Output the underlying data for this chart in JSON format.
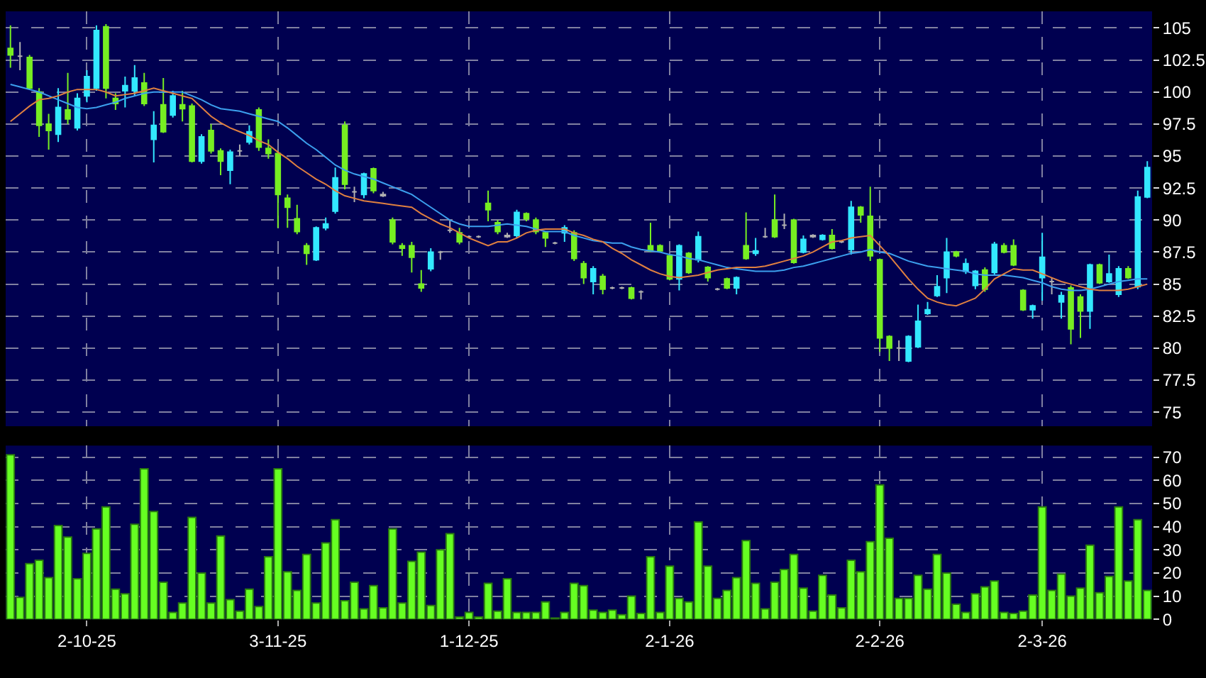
{
  "chart_data": [
    {
      "type": "candlestick",
      "categories": [
        null,
        null,
        null,
        null,
        null,
        null,
        null,
        null,
        null,
        null,
        null,
        null,
        null,
        null,
        null,
        null,
        null,
        null,
        null,
        null,
        null,
        null,
        null,
        null,
        null,
        null,
        null,
        null,
        null,
        null,
        null,
        null,
        null,
        null,
        null,
        null,
        null,
        null,
        null,
        null,
        null,
        null,
        null,
        null,
        null,
        null,
        null,
        null,
        null,
        null,
        null,
        null,
        null,
        null,
        null,
        null,
        null,
        null,
        null,
        null,
        null,
        null,
        null,
        null,
        null,
        null,
        null,
        null,
        null,
        null,
        null,
        null,
        null,
        null,
        null,
        null,
        null,
        null,
        null,
        null,
        null,
        null,
        null,
        null,
        null,
        null,
        null,
        null,
        null,
        null,
        null,
        null,
        null,
        null,
        null,
        null,
        null,
        null,
        null,
        null,
        null,
        null,
        null,
        null,
        null,
        null,
        null,
        null,
        null,
        null,
        null,
        null,
        null,
        null,
        null,
        null,
        null,
        null,
        null,
        null
      ],
      "ohlc": [
        [
          103.4,
          105.2,
          101.9,
          102.9
        ],
        [
          102.8,
          103.9,
          101.7,
          102.8
        ],
        [
          102.7,
          102.9,
          100.2,
          100.3
        ],
        [
          100.0,
          100.3,
          96.5,
          97.4
        ],
        [
          97.5,
          98.3,
          95.5,
          97.0
        ],
        [
          96.7,
          100.3,
          96.1,
          98.8
        ],
        [
          98.6,
          101.5,
          97.5,
          97.9
        ],
        [
          97.2,
          99.9,
          97.0,
          99.5
        ],
        [
          99.7,
          101.7,
          99.2,
          101.2
        ],
        [
          100.3,
          105.2,
          100.1,
          104.8
        ],
        [
          105.1,
          105.3,
          99.5,
          100.3
        ],
        [
          99.5,
          99.9,
          98.6,
          99.1
        ],
        [
          100.1,
          101.2,
          98.8,
          100.5
        ],
        [
          100.1,
          102.1,
          99.7,
          101.1
        ],
        [
          100.7,
          101.5,
          98.9,
          99.1
        ],
        [
          96.3,
          98.5,
          94.5,
          97.4
        ],
        [
          99.0,
          101.1,
          96.8,
          96.9
        ],
        [
          98.2,
          100.1,
          98.0,
          99.7
        ],
        [
          99.0,
          100.1,
          97.7,
          98.7
        ],
        [
          98.9,
          99.1,
          94.5,
          94.6
        ],
        [
          94.6,
          96.7,
          94.4,
          96.5
        ],
        [
          97.0,
          97.5,
          95.2,
          95.4
        ],
        [
          95.4,
          95.6,
          93.5,
          94.6
        ],
        [
          93.9,
          95.5,
          92.8,
          95.3
        ],
        [
          95.4,
          95.9,
          95.0,
          95.4
        ],
        [
          96.1,
          97.4,
          95.9,
          96.9
        ],
        [
          98.6,
          98.8,
          95.4,
          95.7
        ],
        [
          95.6,
          96.3,
          94.8,
          95.2
        ],
        [
          95.2,
          95.4,
          89.4,
          92.0
        ],
        [
          91.7,
          92.0,
          89.4,
          91.0
        ],
        [
          90.1,
          91.2,
          88.9,
          89.1
        ],
        [
          88.0,
          88.2,
          86.5,
          87.4
        ],
        [
          86.9,
          89.5,
          86.8,
          89.4
        ],
        [
          89.4,
          90.2,
          89.2,
          89.7
        ],
        [
          90.7,
          94.1,
          90.5,
          93.3
        ],
        [
          97.4,
          97.7,
          92.4,
          92.8
        ],
        [
          92.2,
          92.6,
          91.4,
          92.2
        ],
        [
          92.0,
          93.7,
          91.7,
          93.6
        ],
        [
          94.0,
          94.1,
          92.1,
          92.3
        ],
        [
          92.0,
          92.2,
          91.8,
          91.9
        ],
        [
          90.0,
          90.2,
          88.1,
          88.3
        ],
        [
          88.0,
          88.2,
          87.2,
          87.8
        ],
        [
          88.0,
          88.3,
          85.9,
          87.1
        ],
        [
          85.0,
          86.1,
          84.4,
          84.7
        ],
        [
          86.2,
          87.8,
          86.0,
          87.5
        ],
        [
          87.5,
          87.6,
          86.9,
          87.5
        ],
        [
          89.2,
          90.0,
          89.0,
          89.2
        ],
        [
          89.0,
          89.4,
          88.1,
          88.3
        ],
        [
          88.7,
          88.8,
          88.6,
          88.7
        ],
        [
          88.7,
          88.8,
          88.6,
          88.7
        ],
        [
          91.3,
          92.3,
          89.9,
          90.8
        ],
        [
          89.8,
          90.0,
          88.9,
          89.1
        ],
        [
          88.8,
          89.0,
          88.6,
          88.7
        ],
        [
          88.8,
          90.8,
          88.6,
          90.6
        ],
        [
          90.5,
          90.6,
          89.9,
          90.1
        ],
        [
          90.0,
          90.2,
          88.9,
          89.1
        ],
        [
          89.0,
          89.1,
          87.9,
          88.6
        ],
        [
          88.2,
          88.3,
          88.1,
          88.2
        ],
        [
          89.0,
          89.6,
          88.3,
          89.4
        ],
        [
          89.0,
          89.2,
          86.8,
          87.0
        ],
        [
          86.6,
          86.8,
          85.0,
          85.5
        ],
        [
          85.2,
          86.4,
          84.2,
          86.2
        ],
        [
          85.6,
          85.8,
          84.2,
          84.6
        ],
        [
          84.7,
          84.8,
          84.6,
          84.7
        ],
        [
          84.7,
          84.8,
          84.6,
          84.7
        ],
        [
          84.7,
          84.8,
          83.8,
          83.9
        ],
        [
          84.4,
          84.5,
          83.8,
          84.4
        ],
        [
          88.0,
          89.8,
          87.5,
          87.6
        ],
        [
          88.0,
          88.1,
          87.5,
          87.6
        ],
        [
          87.2,
          87.3,
          85.3,
          85.4
        ],
        [
          85.4,
          88.1,
          84.5,
          88.0
        ],
        [
          87.4,
          87.5,
          85.8,
          85.9
        ],
        [
          86.9,
          89.1,
          86.7,
          88.7
        ],
        [
          86.3,
          86.4,
          85.2,
          85.5
        ],
        [
          84.6,
          84.7,
          84.5,
          84.6
        ],
        [
          85.4,
          85.5,
          84.6,
          84.7
        ],
        [
          84.7,
          85.6,
          84.2,
          85.5
        ],
        [
          88.0,
          90.6,
          86.9,
          87.0
        ],
        [
          87.4,
          88.6,
          87.2,
          87.6
        ],
        [
          88.7,
          89.4,
          88.6,
          88.7
        ],
        [
          90.0,
          92.0,
          88.6,
          88.7
        ],
        [
          89.6,
          90.5,
          89.3,
          89.6
        ],
        [
          90.0,
          90.1,
          86.6,
          86.7
        ],
        [
          87.5,
          88.8,
          87.4,
          88.5
        ],
        [
          88.8,
          88.9,
          88.6,
          88.7
        ],
        [
          88.5,
          88.9,
          88.4,
          88.8
        ],
        [
          88.8,
          89.3,
          87.7,
          87.8
        ],
        [
          88.3,
          88.4,
          88.2,
          88.3
        ],
        [
          87.7,
          91.5,
          87.3,
          91.0
        ],
        [
          91.0,
          91.1,
          89.8,
          90.4
        ],
        [
          90.3,
          92.6,
          86.8,
          87.2
        ],
        [
          86.9,
          87.0,
          79.7,
          80.8
        ],
        [
          80.9,
          81.0,
          79.0,
          80.0
        ],
        [
          80.0,
          80.6,
          79.0,
          80.0
        ],
        [
          79.0,
          81.0,
          78.9,
          80.9
        ],
        [
          80.1,
          83.4,
          80.0,
          82.1
        ],
        [
          82.7,
          83.6,
          82.6,
          83.0
        ],
        [
          84.1,
          85.7,
          84.0,
          84.8
        ],
        [
          85.5,
          88.6,
          84.3,
          87.5
        ],
        [
          87.5,
          87.6,
          87.1,
          87.2
        ],
        [
          86.0,
          87.0,
          85.8,
          86.6
        ],
        [
          84.9,
          86.1,
          84.6,
          86.0
        ],
        [
          86.1,
          86.3,
          84.4,
          84.6
        ],
        [
          85.9,
          88.3,
          85.7,
          88.1
        ],
        [
          88.0,
          88.2,
          87.4,
          87.5
        ],
        [
          88.0,
          88.5,
          86.4,
          86.5
        ],
        [
          84.5,
          84.6,
          82.9,
          83.0
        ],
        [
          83.0,
          83.4,
          82.3,
          83.3
        ],
        [
          85.5,
          89.0,
          83.7,
          87.1
        ],
        [
          85.2,
          85.5,
          84.2,
          85.2
        ],
        [
          83.6,
          84.4,
          82.3,
          84.1
        ],
        [
          84.7,
          84.9,
          80.3,
          81.5
        ],
        [
          84.0,
          84.2,
          80.8,
          82.9
        ],
        [
          82.9,
          86.6,
          81.5,
          86.5
        ],
        [
          86.5,
          86.6,
          85.0,
          85.1
        ],
        [
          85.2,
          87.3,
          85.1,
          85.8
        ],
        [
          84.2,
          86.4,
          84.0,
          86.2
        ],
        [
          86.2,
          86.4,
          85.4,
          85.5
        ],
        [
          84.8,
          92.3,
          84.6,
          91.8
        ],
        [
          91.8,
          94.6,
          91.7,
          94.1
        ]
      ],
      "colors": [
        "#77ee22",
        "#b0b0b0",
        "#77ee22",
        "#77ee22",
        "#77ee22",
        "#33e8ff",
        "#77ee22",
        "#33e8ff",
        "#33e8ff",
        "#33e8ff",
        "#77ee22",
        "#77ee22",
        "#33e8ff",
        "#33e8ff",
        "#77ee22",
        "#33e8ff",
        "#77ee22",
        "#33e8ff",
        "#77ee22",
        "#77ee22",
        "#33e8ff",
        "#77ee22",
        "#77ee22",
        "#33e8ff",
        "#b0b0b0",
        "#33e8ff",
        "#77ee22",
        "#77ee22",
        "#77ee22",
        "#77ee22",
        "#77ee22",
        "#77ee22",
        "#33e8ff",
        "#33e8ff",
        "#33e8ff",
        "#77ee22",
        "#b0b0b0",
        "#33e8ff",
        "#77ee22",
        "#b0b0b0",
        "#77ee22",
        "#77ee22",
        "#77ee22",
        "#77ee22",
        "#33e8ff",
        "#b0b0b0",
        "#b0b0b0",
        "#77ee22",
        "#b0b0b0",
        "#b0b0b0",
        "#77ee22",
        "#77ee22",
        "#b0b0b0",
        "#33e8ff",
        "#77ee22",
        "#77ee22",
        "#77ee22",
        "#b0b0b0",
        "#33e8ff",
        "#77ee22",
        "#77ee22",
        "#33e8ff",
        "#77ee22",
        "#b0b0b0",
        "#b0b0b0",
        "#77ee22",
        "#b0b0b0",
        "#77ee22",
        "#77ee22",
        "#77ee22",
        "#33e8ff",
        "#77ee22",
        "#33e8ff",
        "#77ee22",
        "#b0b0b0",
        "#77ee22",
        "#33e8ff",
        "#77ee22",
        "#33e8ff",
        "#b0b0b0",
        "#77ee22",
        "#b0b0b0",
        "#77ee22",
        "#33e8ff",
        "#b0b0b0",
        "#33e8ff",
        "#77ee22",
        "#b0b0b0",
        "#33e8ff",
        "#77ee22",
        "#77ee22",
        "#77ee22",
        "#77ee22",
        "#b0b0b0",
        "#33e8ff",
        "#33e8ff",
        "#33e8ff",
        "#33e8ff",
        "#33e8ff",
        "#77ee22",
        "#33e8ff",
        "#33e8ff",
        "#77ee22",
        "#33e8ff",
        "#77ee22",
        "#77ee22",
        "#77ee22",
        "#33e8ff",
        "#33e8ff",
        "#b0b0b0",
        "#33e8ff",
        "#77ee22",
        "#77ee22",
        "#33e8ff",
        "#77ee22",
        "#33e8ff",
        "#33e8ff",
        "#77ee22",
        "#33e8ff",
        "#33e8ff"
      ],
      "series": [
        {
          "type": "line",
          "color": "#3ca0ee",
          "values": [
            100.6,
            100.4,
            100.2,
            100.0,
            99.7,
            99.4,
            99.1,
            98.8,
            98.7,
            98.8,
            99.0,
            99.2,
            99.5,
            99.7,
            99.9,
            100.0,
            100.0,
            100.0,
            100.0,
            99.7,
            99.4,
            99.0,
            98.7,
            98.6,
            98.5,
            98.3,
            98.1,
            97.9,
            97.7,
            97.2,
            96.6,
            96.0,
            95.5,
            94.9,
            94.3,
            93.9,
            93.6,
            93.4,
            93.2,
            92.9,
            92.6,
            92.3,
            92.0,
            91.5,
            91.0,
            90.5,
            90.0,
            89.7,
            89.5,
            89.5,
            89.5,
            89.6,
            89.7,
            89.6,
            89.5,
            89.3,
            89.1,
            89.1,
            89.1,
            88.8,
            88.6,
            88.4,
            88.3,
            88.2,
            88.2,
            87.9,
            87.7,
            87.6,
            87.5,
            87.3,
            87.2,
            87.0,
            86.9,
            86.7,
            86.5,
            86.3,
            86.2,
            86.1,
            86.0,
            86.0,
            86.0,
            86.1,
            86.3,
            86.4,
            86.6,
            86.8,
            87.0,
            87.2,
            87.4,
            87.5,
            87.7,
            87.5,
            87.4,
            87.1,
            86.8,
            86.6,
            86.4,
            86.3,
            86.2,
            86.1,
            86.0,
            85.8,
            85.7,
            85.7,
            85.7,
            85.6,
            85.5,
            85.3,
            85.1,
            84.8,
            84.6,
            84.5,
            84.5,
            84.6,
            84.8,
            85.0,
            85.2,
            85.3,
            85.4,
            85.4
          ]
        },
        {
          "type": "line",
          "color": "#e08040",
          "values": [
            97.7,
            98.3,
            98.9,
            99.4,
            99.5,
            99.7,
            100.0,
            100.2,
            100.2,
            100.2,
            100.0,
            99.7,
            99.8,
            99.9,
            100.1,
            100.3,
            100.1,
            99.9,
            99.7,
            99.5,
            98.8,
            98.1,
            97.6,
            97.2,
            96.9,
            96.6,
            96.2,
            95.9,
            95.3,
            94.8,
            94.2,
            93.7,
            93.2,
            92.8,
            92.3,
            91.9,
            91.7,
            91.5,
            91.4,
            91.3,
            91.2,
            91.1,
            91.0,
            90.5,
            90.1,
            89.7,
            89.4,
            89.0,
            88.6,
            88.3,
            88.0,
            88.3,
            88.3,
            88.6,
            89.0,
            89.2,
            89.3,
            89.3,
            89.3,
            89.0,
            88.8,
            88.5,
            88.3,
            87.8,
            87.4,
            86.9,
            86.5,
            86.1,
            85.8,
            85.6,
            85.5,
            85.6,
            85.7,
            85.9,
            86.1,
            86.2,
            86.3,
            86.3,
            86.3,
            86.4,
            86.6,
            86.8,
            87.0,
            87.2,
            87.5,
            87.9,
            88.3,
            88.4,
            88.6,
            88.7,
            88.8,
            88.0,
            87.2,
            86.3,
            85.4,
            84.6,
            83.9,
            83.6,
            83.4,
            83.3,
            83.6,
            83.9,
            84.6,
            85.4,
            85.8,
            86.2,
            86.1,
            86.1,
            85.8,
            85.5,
            85.2,
            85.0,
            84.8,
            84.6,
            84.5,
            84.5,
            84.5,
            84.6,
            84.8,
            85.0
          ]
        }
      ],
      "ylim": [
        73.9,
        106.3
      ],
      "yticks": [
        75,
        77.5,
        80,
        82.5,
        85,
        87.5,
        90,
        92.5,
        95,
        97.5,
        100,
        102.5,
        105
      ],
      "grid": true,
      "tick_labels": "y"
    },
    {
      "type": "bar",
      "categories": [
        null,
        null,
        null,
        null,
        null,
        null,
        null,
        null,
        "2-10-25",
        null,
        null,
        null,
        null,
        null,
        null,
        null,
        null,
        null,
        null,
        null,
        null,
        null,
        null,
        null,
        null,
        null,
        null,
        null,
        "3-11-25",
        null,
        null,
        null,
        null,
        null,
        null,
        null,
        null,
        null,
        null,
        null,
        null,
        null,
        null,
        null,
        null,
        null,
        null,
        null,
        "1-12-25",
        null,
        null,
        null,
        null,
        null,
        null,
        null,
        null,
        null,
        null,
        null,
        null,
        null,
        null,
        null,
        null,
        null,
        null,
        null,
        null,
        "2-1-26",
        null,
        null,
        null,
        null,
        null,
        null,
        null,
        null,
        null,
        null,
        null,
        null,
        null,
        null,
        null,
        null,
        null,
        null,
        null,
        null,
        null,
        "2-2-26",
        null,
        null,
        null,
        null,
        null,
        null,
        null,
        null,
        null,
        null,
        null,
        null,
        null,
        null,
        null,
        null,
        "2-3-26",
        null,
        null,
        null,
        null,
        null,
        null,
        null,
        null,
        null,
        null,
        null
      ],
      "values": [
        71,
        9.5,
        24,
        25.5,
        18,
        40.5,
        35.5,
        17.5,
        28.5,
        39,
        48.5,
        13,
        11,
        41,
        65,
        46.5,
        16,
        3,
        7,
        44,
        20,
        7,
        36,
        8.5,
        3.5,
        13,
        5.5,
        27,
        65,
        20.5,
        12.5,
        28,
        7,
        33,
        43,
        8,
        16,
        4.5,
        14.5,
        5,
        39,
        7,
        25,
        29,
        6,
        30,
        37,
        1,
        3,
        1,
        15.5,
        3.5,
        17.5,
        3,
        3,
        3,
        7.5,
        0.5,
        3,
        15.5,
        14.5,
        4,
        3,
        4,
        2,
        10,
        2.5,
        27,
        3,
        23,
        9,
        7.5,
        42,
        23,
        9,
        12.5,
        18,
        34,
        15.5,
        4.5,
        16,
        21.5,
        28,
        13.5,
        3.5,
        19,
        10.5,
        5,
        25.5,
        20.5,
        33.5,
        58,
        35,
        9,
        9,
        19,
        13,
        28,
        20,
        6.5,
        3,
        11,
        14,
        16.5,
        3,
        2.5,
        3.5,
        10.5,
        48.5,
        12.5,
        19.5,
        10,
        13.5,
        32,
        11.5,
        18.5,
        48.5,
        16.5,
        43,
        12.5
      ],
      "color": "#66ff22",
      "ylim": [
        0,
        75
      ],
      "yticks": [
        0,
        10,
        20,
        30,
        40,
        50,
        60,
        70
      ],
      "grid": true
    }
  ]
}
